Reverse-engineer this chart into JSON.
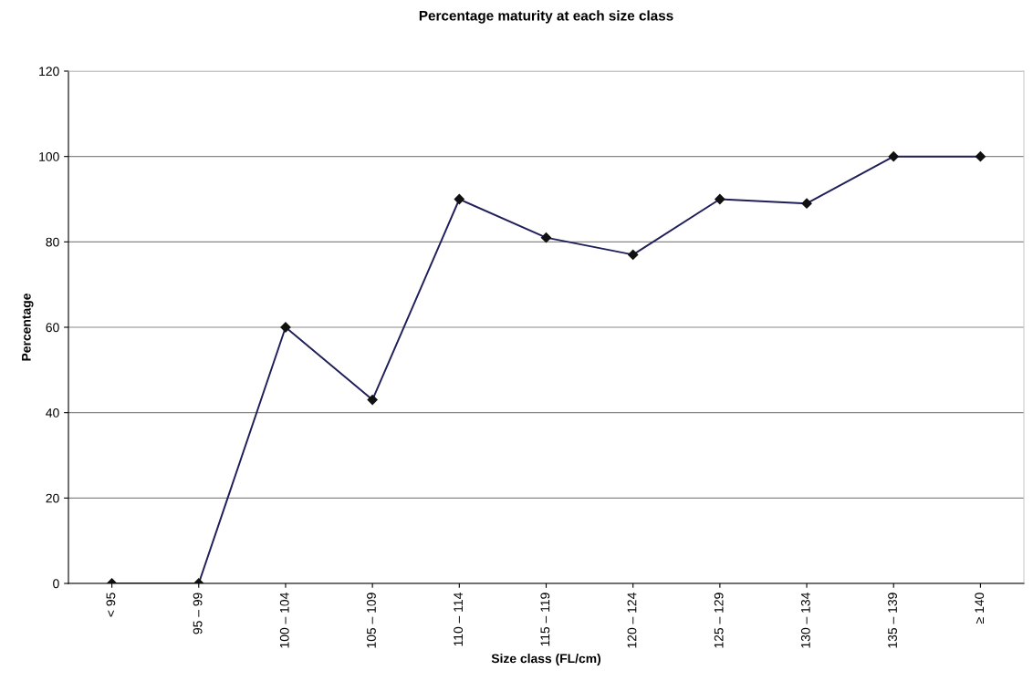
{
  "chart_data": {
    "type": "line",
    "title": "Percentage maturity at each size class",
    "xlabel": "Size class (FL/cm)",
    "ylabel": "Percentage",
    "categories": [
      "< 95",
      "95 – 99",
      "100 – 104",
      "105 – 109",
      "110 – 114",
      "115 – 119",
      "120 – 124",
      "125 – 129",
      "130 – 134",
      "135 – 139",
      "≥ 140"
    ],
    "series": [
      {
        "color": "#1f1f5a",
        "values": [
          0,
          0,
          60,
          43,
          90,
          81,
          77,
          90,
          89,
          100,
          100
        ]
      }
    ],
    "ylim": [
      0,
      120
    ],
    "yticks": [
      0,
      20,
      40,
      60,
      80,
      100,
      120
    ],
    "grid": "y",
    "marker": "diamond",
    "line_style": "solid"
  }
}
